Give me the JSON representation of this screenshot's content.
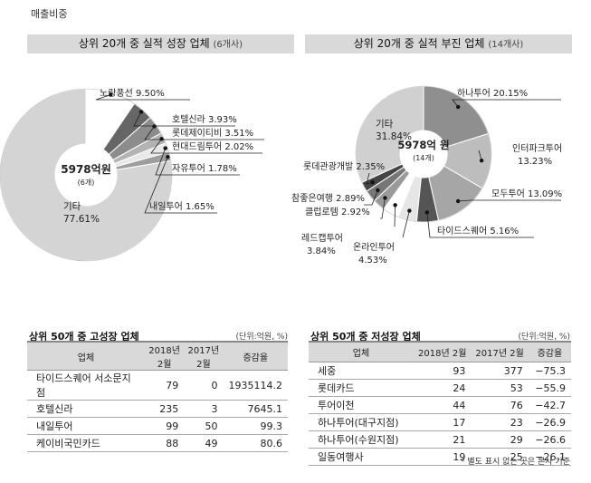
{
  "section_label": "매출비중",
  "left_panel": {
    "title": "상위 20개 중 실적 성장 업체",
    "subtitle": "(6개사)"
  },
  "right_panel": {
    "title": "상위 20개 중 실적 부진 업체",
    "subtitle": "(14개사)"
  },
  "chart_data": [
    {
      "type": "pie",
      "title": "상위 20개 중 실적 성장 업체",
      "center_label": "5978억원",
      "center_sub": "(6개)",
      "slices": [
        {
          "name": "노랑풍선",
          "value": 9.5,
          "label": "노랑풍선 9.50%",
          "color": "#ffffff"
        },
        {
          "name": "호텔신라",
          "value": 3.93,
          "label": "호텔신라 3.93%",
          "color": "#666666"
        },
        {
          "name": "롯데제이티비",
          "value": 3.51,
          "label": "롯데제이티비 3.51%",
          "color": "#8c8c8c"
        },
        {
          "name": "현대드림투어",
          "value": 2.02,
          "label": "현대드림투어 2.02%",
          "color": "#b3b3b3"
        },
        {
          "name": "자유투어",
          "value": 1.78,
          "label": "자유투어 1.78%",
          "color": "#e8e8e8"
        },
        {
          "name": "내일투어",
          "value": 1.65,
          "label": "내일투어 1.65%",
          "color": "#9e9e9e"
        },
        {
          "name": "기타",
          "value": 77.61,
          "label_name": "기타",
          "label_value": "77.61%",
          "color": "#d4d4d4"
        }
      ]
    },
    {
      "type": "pie",
      "title": "상위 20개 중 실적 부진 업체",
      "center_label": "5978억 원",
      "center_sub": "(14개)",
      "slices": [
        {
          "name": "하나투어",
          "value": 20.15,
          "label": "하나투어 20.15%",
          "color": "#8f8f8f"
        },
        {
          "name": "인터파크투어",
          "value": 13.23,
          "label_name": "인터파크투어",
          "label_value": "13.23%",
          "color": "#bdbdbd"
        },
        {
          "name": "모두투어",
          "value": 13.09,
          "label": "모두투어 13.09%",
          "color": "#a6a6a6"
        },
        {
          "name": "타이드스퀘어",
          "value": 5.16,
          "label": "타이드스퀘어 5.16%",
          "color": "#555555"
        },
        {
          "name": "온라인투어",
          "value": 4.53,
          "label_name": "온라인투어",
          "label_value": "4.53%",
          "color": "#e6e6e6"
        },
        {
          "name": "레드캡투어",
          "value": 3.84,
          "label_name": "레드캡투어",
          "label_value": "3.84%",
          "color": "#ffffff"
        },
        {
          "name": "클럽로템",
          "value": 2.92,
          "label": "클럽로템 2.92%",
          "color": "#9a9a9a"
        },
        {
          "name": "참좋은여행",
          "value": 2.89,
          "label": "참좋은여행 2.89%",
          "color": "#777777"
        },
        {
          "name": "롯데관광개발",
          "value": 2.35,
          "label": "롯데관광개발 2.35%",
          "color": "#444444"
        },
        {
          "name": "기타",
          "value": 31.84,
          "label_name": "기타",
          "label_value": "31.84%",
          "color": "#d0d0d0"
        }
      ]
    }
  ],
  "high_growth_table": {
    "title": "상위 50개 중 고성장 업체",
    "unit": "(단위:억원, %)",
    "headers": [
      "업체",
      "2018년 2월",
      "2017년 2월",
      "증감율"
    ],
    "rows": [
      [
        "타이드스퀘어 서소문지점",
        "79",
        "0",
        "1935114.2"
      ],
      [
        "호텔신라",
        "235",
        "3",
        "7645.1"
      ],
      [
        "내일투어",
        "99",
        "50",
        "99.3"
      ],
      [
        "케이비국민카드",
        "88",
        "49",
        "80.6"
      ]
    ]
  },
  "low_growth_table": {
    "title": "상위 50개 중 저성장 업체",
    "unit": "(단위:억원, %)",
    "headers": [
      "업체",
      "2018년 2월",
      "2017년 2월",
      "증감율"
    ],
    "rows": [
      [
        "세중",
        "93",
        "377",
        "−75.3"
      ],
      [
        "롯데카드",
        "24",
        "53",
        "−55.9"
      ],
      [
        "투어이천",
        "44",
        "76",
        "−42.7"
      ],
      [
        "하나투어(대구지점)",
        "17",
        "23",
        "−26.9"
      ],
      [
        "하나투어(수원지점)",
        "21",
        "29",
        "−26.6"
      ],
      [
        "일동여행사",
        "19",
        "25",
        "−26.1"
      ]
    ]
  },
  "footnote": "* 별도 표시 없는 곳은 본사 기준"
}
